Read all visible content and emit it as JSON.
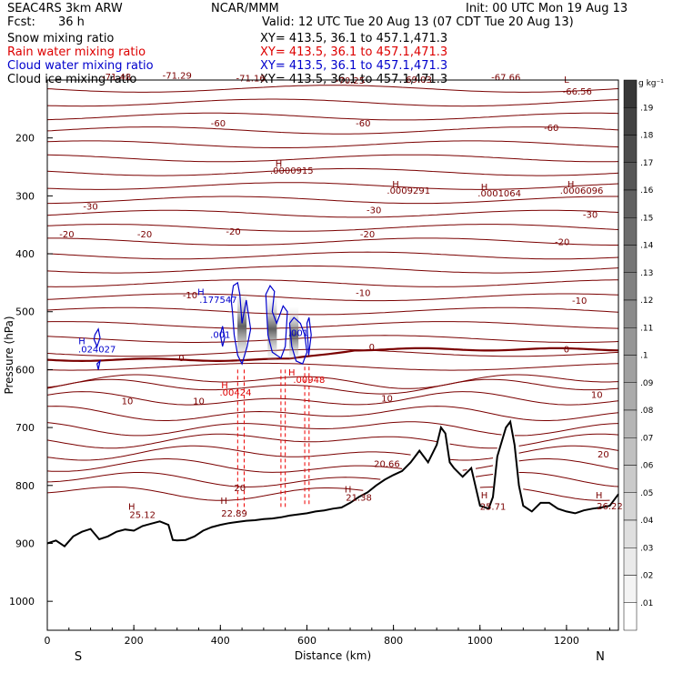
{
  "header": {
    "model": "SEAC4RS  3km ARW",
    "org": "NCAR/MMM",
    "init": "Init: 00 UTC Mon 19 Aug 13",
    "fcst_label": "Fcst:",
    "fcst_value": "36 h",
    "valid": "Valid: 12 UTC Tue 20 Aug 13 (07 CDT Tue 20 Aug 13)",
    "fields": [
      {
        "name": "Snow mixing ratio",
        "xy": "XY= 413.5, 36.1 to 457.1,471.3",
        "color": "#000000"
      },
      {
        "name": "Rain water mixing ratio",
        "xy": "XY= 413.5, 36.1 to 457.1,471.3",
        "color": "#dd0000"
      },
      {
        "name": "Cloud water mixing ratio",
        "xy": "XY= 413.5, 36.1 to 457.1,471.3",
        "color": "#0000cc"
      },
      {
        "name": "Cloud ice mixing ratio",
        "xy": "XY= 413.5, 36.1 to 457.1,471.3",
        "color": "#000000"
      }
    ]
  },
  "colorbar": {
    "unit": "g kg⁻¹",
    "ticks": [
      ".19",
      ".18",
      ".17",
      ".16",
      ".15",
      ".14",
      ".13",
      ".12",
      ".11",
      ".1",
      ".09",
      ".08",
      ".07",
      ".06",
      ".05",
      ".04",
      ".03",
      ".02",
      ".01"
    ]
  },
  "chart_data": {
    "type": "cross-section",
    "xlabel": "Distance (km)",
    "ylabel": "Pressure (hPa)",
    "xlim": [
      0,
      1320
    ],
    "ylim": [
      1050,
      100
    ],
    "xticks": [
      0,
      200,
      400,
      600,
      800,
      1000,
      1200
    ],
    "yticks": [
      200,
      300,
      400,
      500,
      600,
      700,
      800,
      900,
      1000
    ],
    "end_labels": {
      "left": "S",
      "right": "N"
    },
    "temperature_contour_labels": [
      {
        "text": "-71.48",
        "x": 160,
        "p": 100
      },
      {
        "text": "-71.29",
        "x": 300,
        "p": 98
      },
      {
        "text": "-71.16",
        "x": 470,
        "p": 102
      },
      {
        "text": "-70.25",
        "x": 700,
        "p": 106
      },
      {
        "text": "-69.03",
        "x": 855,
        "p": 105
      },
      {
        "text": "-67.66",
        "x": 1060,
        "p": 101
      },
      {
        "text": "L",
        "x": 1200,
        "p": 105
      },
      {
        "text": "-66.56",
        "x": 1225,
        "p": 125
      },
      {
        "text": "-60",
        "x": 395,
        "p": 180
      },
      {
        "text": "-60",
        "x": 730,
        "p": 180
      },
      {
        "text": "-60",
        "x": 1165,
        "p": 188
      },
      {
        "text": "H",
        "x": 535,
        "p": 250
      },
      {
        "text": ".0000915",
        "x": 565,
        "p": 262
      },
      {
        "text": "H",
        "x": 805,
        "p": 285
      },
      {
        "text": ".0009291",
        "x": 835,
        "p": 296
      },
      {
        "text": "H",
        "x": 1010,
        "p": 290
      },
      {
        "text": ".0001064",
        "x": 1045,
        "p": 301
      },
      {
        "text": "H",
        "x": 1210,
        "p": 285
      },
      {
        "text": ".0006096",
        "x": 1235,
        "p": 296
      },
      {
        "text": "-30",
        "x": 100,
        "p": 324
      },
      {
        "text": "-30",
        "x": 755,
        "p": 330
      },
      {
        "text": "-30",
        "x": 1255,
        "p": 338
      },
      {
        "text": "-20",
        "x": 45,
        "p": 372
      },
      {
        "text": "-20",
        "x": 225,
        "p": 372
      },
      {
        "text": "-20",
        "x": 430,
        "p": 367
      },
      {
        "text": "-20",
        "x": 740,
        "p": 372
      },
      {
        "text": "-20",
        "x": 1190,
        "p": 385
      },
      {
        "text": "-10",
        "x": 330,
        "p": 477
      },
      {
        "text": "-10",
        "x": 730,
        "p": 473
      },
      {
        "text": "-10",
        "x": 1230,
        "p": 486
      },
      {
        "text": "0",
        "x": 310,
        "p": 585
      },
      {
        "text": "0",
        "x": 750,
        "p": 566
      },
      {
        "text": "0",
        "x": 1200,
        "p": 570
      },
      {
        "text": "10",
        "x": 185,
        "p": 660
      },
      {
        "text": "10",
        "x": 350,
        "p": 660
      },
      {
        "text": "10",
        "x": 785,
        "p": 655
      },
      {
        "text": "10",
        "x": 1270,
        "p": 649
      },
      {
        "text": "20",
        "x": 1285,
        "p": 752
      },
      {
        "text": "20",
        "x": 445,
        "p": 810
      },
      {
        "text": "H",
        "x": 195,
        "p": 842
      },
      {
        "text": "25.12",
        "x": 220,
        "p": 856
      },
      {
        "text": "H",
        "x": 408,
        "p": 832
      },
      {
        "text": "22.89",
        "x": 432,
        "p": 854
      },
      {
        "text": "H",
        "x": 695,
        "p": 812
      },
      {
        "text": "21.38",
        "x": 720,
        "p": 826
      },
      {
        "text": "20.66",
        "x": 785,
        "p": 768
      },
      {
        "text": "H",
        "x": 1010,
        "p": 822
      },
      {
        "text": "25.71",
        "x": 1030,
        "p": 842
      },
      {
        "text": "H",
        "x": 1275,
        "p": 822
      },
      {
        "text": "26.22",
        "x": 1300,
        "p": 841
      }
    ],
    "cloud_water_labels": [
      {
        "text": "H",
        "x": 80,
        "p": 556
      },
      {
        "text": ".024027",
        "x": 115,
        "p": 570
      },
      {
        "text": "H",
        "x": 355,
        "p": 471
      },
      {
        "text": ".177547",
        "x": 395,
        "p": 485
      },
      {
        "text": ".001",
        "x": 400,
        "p": 545
      },
      {
        "text": ".001",
        "x": 580,
        "p": 542
      }
    ],
    "rain_labels": [
      {
        "text": "H",
        "x": 410,
        "p": 632
      },
      {
        "text": ".00424",
        "x": 435,
        "p": 645
      },
      {
        "text": "H",
        "x": 565,
        "p": 610
      },
      {
        "text": ".00948",
        "x": 605,
        "p": 623
      }
    ],
    "terrain_pressure": {
      "x": [
        0,
        20,
        40,
        60,
        80,
        100,
        120,
        140,
        160,
        180,
        200,
        220,
        240,
        260,
        280,
        290,
        300,
        320,
        340,
        360,
        380,
        400,
        420,
        440,
        460,
        480,
        500,
        520,
        540,
        560,
        580,
        600,
        620,
        640,
        660,
        680,
        700,
        720,
        740,
        760,
        780,
        800,
        820,
        840,
        860,
        880,
        900,
        910,
        920,
        930,
        940,
        960,
        980,
        1000,
        1020,
        1030,
        1040,
        1060,
        1070,
        1080,
        1090,
        1100,
        1120,
        1140,
        1160,
        1180,
        1200,
        1220,
        1240,
        1260,
        1280,
        1300,
        1320
      ],
      "p": [
        900,
        895,
        905,
        888,
        880,
        875,
        893,
        888,
        880,
        876,
        878,
        870,
        866,
        862,
        868,
        894,
        895,
        894,
        888,
        878,
        872,
        868,
        865,
        863,
        861,
        860,
        858,
        857,
        855,
        852,
        850,
        848,
        845,
        843,
        840,
        838,
        830,
        820,
        812,
        800,
        790,
        782,
        775,
        760,
        740,
        760,
        730,
        700,
        710,
        760,
        770,
        785,
        770,
        835,
        840,
        820,
        750,
        700,
        690,
        730,
        800,
        835,
        845,
        830,
        830,
        840,
        845,
        848,
        843,
        840,
        838,
        835,
        815
      ]
    },
    "freezing_level_p": 583
  }
}
